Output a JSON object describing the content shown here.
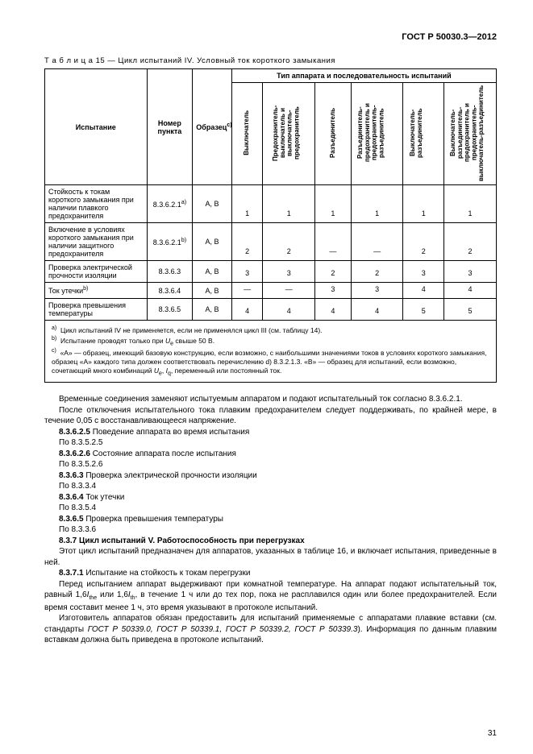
{
  "doc_header": "ГОСТ Р 50030.3—2012",
  "table": {
    "caption": "Т а б л и ц а   15 — Цикл испытаний IV. Условный ток короткого замыкания",
    "col_headers": {
      "test": "Испытание",
      "item": "Номер пункта",
      "sample": "Образец",
      "sample_sup": "c)",
      "group": "Тип аппарата и последовательность испытаний",
      "c1": "Выключатель",
      "c2": "Предохранитель-выключатель и выключатель-предохранитель",
      "c3": "Разъединитель",
      "c4": "Разъединитель-предохранитель и предохранитель-разъединитель",
      "c5": "Выключатель-разъединитель",
      "c6": "Выключатель-разъединитель-предохранитель и предохранитель-выключатель-разъединитель"
    },
    "rows": [
      {
        "label": "Стойкость к токам короткого замыкания при наличии плавкого предохранителя",
        "item": "8.3.6.2.1",
        "item_sup": "a)",
        "sample": "A, B",
        "v": [
          "1",
          "1",
          "1",
          "1",
          "1",
          "1"
        ]
      },
      {
        "label": "Включение в условиях короткого замыкания при наличии защитного предохранителя",
        "item": "8.3.6.2.1",
        "item_sup": "b)",
        "sample": "A, B",
        "v": [
          "2",
          "2",
          "—",
          "—",
          "2",
          "2"
        ]
      },
      {
        "label": "Проверка электрической прочности изоляции",
        "item": "8.3.6.3",
        "item_sup": "",
        "sample": "A, B",
        "v": [
          "3",
          "3",
          "2",
          "2",
          "3",
          "3"
        ]
      },
      {
        "label": "Ток утечки",
        "label_sup": "b)",
        "item": "8.3.6.4",
        "item_sup": "",
        "sample": "A, B",
        "v": [
          "—",
          "—",
          "3",
          "3",
          "4",
          "4"
        ]
      },
      {
        "label": "Проверка превышения температуры",
        "item": "8.3.6.5",
        "item_sup": "",
        "sample": "A, B",
        "v": [
          "4",
          "4",
          "4",
          "4",
          "5",
          "5"
        ]
      }
    ],
    "notes": {
      "a": "Цикл испытаний IV не применяется, если не применялся цикл III (см. таблицу 14).",
      "b_pre": "Испытание проводят только при ",
      "b_var": "U",
      "b_sub": "e",
      "b_post": " свыше 50 В.",
      "c": "«А» — образец, имеющий базовую конструкцию, если возможно, с наибольшими значениями токов в условиях короткого замыкания, образец «А» каждого типа должен соответствовать перечислению d) 8.3.2.1.3. «В» — образец для испытаний, если возможно, сочетающий много комбинаций ",
      "c_u": "U",
      "c_usub": "e",
      "c_mid": ", ",
      "c_i": "I",
      "c_isub": "q",
      "c_post": ", переменный или постоянный ток."
    }
  },
  "body": {
    "p1": "Временные соединения заменяют испытуемым аппаратом и подают испытательный ток согласно 8.3.6.2.1.",
    "p2": "После отключения испытательного тока плавким предохранителем следует поддерживать, по крайней мере, в течение 0,05 с восстанавливающееся напряжение.",
    "s625": "8.3.6.2.5",
    "s625t": "  Поведение аппарата во время испытания",
    "s625r": "По 8.3.5.2.5",
    "s626": "8.3.6.2.6",
    "s626t": "  Состояние аппарата после испытания",
    "s626r": "По 8.3.5.2.6",
    "s63": "8.3.6.3",
    "s63t": "  Проверка электрической прочности изоляции",
    "s63r": "По 8.3.3.4",
    "s64": "8.3.6.4",
    "s64t": "  Ток утечки",
    "s64r": "По 8.3.5.4",
    "s65": "8.3.6.5",
    "s65t": "  Проверка превышения температуры",
    "s65r": "По 8.3.3.6",
    "s37": "8.3.7",
    "s37t": "  Цикл испытаний V. Работоспособность при перегрузках",
    "p37": "Этот цикл испытаний предназначен для аппаратов, указанных в таблице 16, и включает испытания, приведенные в ней.",
    "s371": "8.3.7.1",
    "s371t": "  Испытание на стойкость к токам перегрузки",
    "p371a_pre": "Перед испытанием аппарат выдерживают при комнатной температуре. На аппарат подают испытательный ток, равный 1,6",
    "i1": "I",
    "i1sub": "the",
    "p371a_mid": " или 1,6",
    "i2": "I",
    "i2sub": "th",
    "p371a_post": ", в течение 1 ч или до тех пор, пока не расплавился один или более предохранителей. Если время составит менее 1 ч, это время указывают в протоколе испытаний.",
    "p371b_pre": "Изготовитель аппаратов обязан предоставить для испытаний применяемые с аппаратами плавкие вставки (см. стандарты ",
    "std": "ГОСТ Р 50339.0, ГОСТ Р 50339.1, ГОСТ Р 50339.2, ГОСТ Р 50339.3",
    "p371b_post": "). Информация по данным плавким вставкам должна быть приведена в протоколе испытаний."
  },
  "page_number": "31"
}
